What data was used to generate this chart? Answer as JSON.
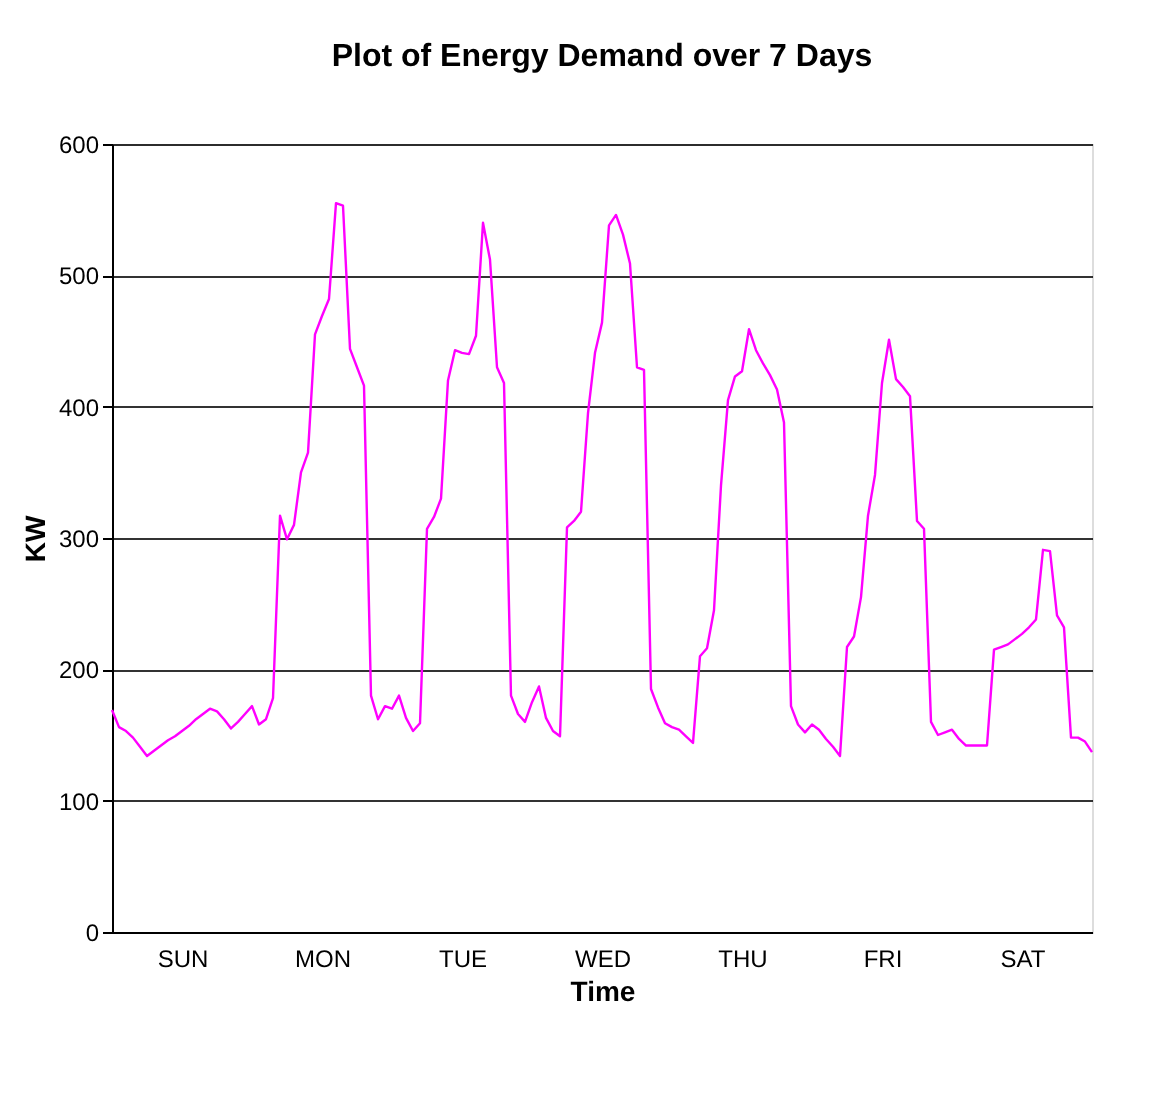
{
  "chart_data": {
    "type": "line",
    "title": "Plot of Energy Demand over 7 Days",
    "xlabel": "Time",
    "ylabel": "KW",
    "categories": [
      null,
      null,
      null,
      null,
      null,
      null,
      null,
      null,
      null,
      null,
      "SUN",
      null,
      null,
      null,
      null,
      null,
      null,
      null,
      null,
      null,
      null,
      null,
      null,
      null,
      null,
      null,
      null,
      null,
      null,
      null,
      "MON",
      null,
      null,
      null,
      null,
      null,
      null,
      null,
      null,
      null,
      null,
      null,
      null,
      null,
      null,
      null,
      null,
      null,
      null,
      null,
      "TUE",
      null,
      null,
      null,
      null,
      null,
      null,
      null,
      null,
      null,
      null,
      null,
      null,
      null,
      null,
      null,
      null,
      null,
      null,
      null,
      "WED",
      null,
      null,
      null,
      null,
      null,
      null,
      null,
      null,
      null,
      null,
      null,
      null,
      null,
      null,
      null,
      null,
      null,
      null,
      null,
      "THU",
      null,
      null,
      null,
      null,
      null,
      null,
      null,
      null,
      null,
      null,
      null,
      null,
      null,
      null,
      null,
      null,
      null,
      null,
      null,
      "FRI",
      null,
      null,
      null,
      null,
      null,
      null,
      null,
      null,
      null,
      null,
      null,
      null,
      null,
      null,
      null,
      null,
      null,
      null,
      null,
      "SAT",
      null,
      null,
      null,
      null,
      null,
      null,
      null,
      null,
      null,
      null
    ],
    "series": [
      {
        "color": "#ff00ff",
        "values": [
          169,
          156,
          153,
          148,
          141,
          134,
          138,
          142,
          146,
          149,
          153,
          157,
          162,
          166,
          170,
          168,
          162,
          155,
          160,
          166,
          172,
          158,
          162,
          178,
          317,
          299,
          310,
          350,
          365,
          455,
          469,
          482,
          555,
          553,
          444,
          430,
          416,
          180,
          162,
          172,
          170,
          180,
          163,
          153,
          159,
          307,
          316,
          330,
          420,
          443,
          441,
          440,
          454,
          540,
          512,
          430,
          418,
          180,
          166,
          160,
          175,
          187,
          163,
          153,
          149,
          308,
          313,
          320,
          395,
          441,
          464,
          538,
          546,
          531,
          509,
          430,
          428,
          185,
          171,
          159,
          156,
          154,
          149,
          144,
          210,
          216,
          245,
          340,
          405,
          423,
          427,
          459,
          443,
          433,
          424,
          413,
          388,
          172,
          158,
          152,
          158,
          154,
          147,
          141,
          134,
          217,
          225,
          255,
          317,
          348,
          418,
          451,
          421,
          415,
          408,
          313,
          307,
          160,
          150,
          152,
          154,
          147,
          142,
          142,
          142,
          142,
          215,
          217,
          219,
          223,
          227,
          232,
          238,
          291,
          290,
          241,
          232,
          148,
          148,
          145,
          137
        ]
      }
    ],
    "ylim": [
      0,
      600
    ],
    "yticks": [
      0,
      100,
      200,
      300,
      400,
      500,
      600
    ],
    "grid": "y",
    "marker": "none",
    "line_style": "solid"
  }
}
